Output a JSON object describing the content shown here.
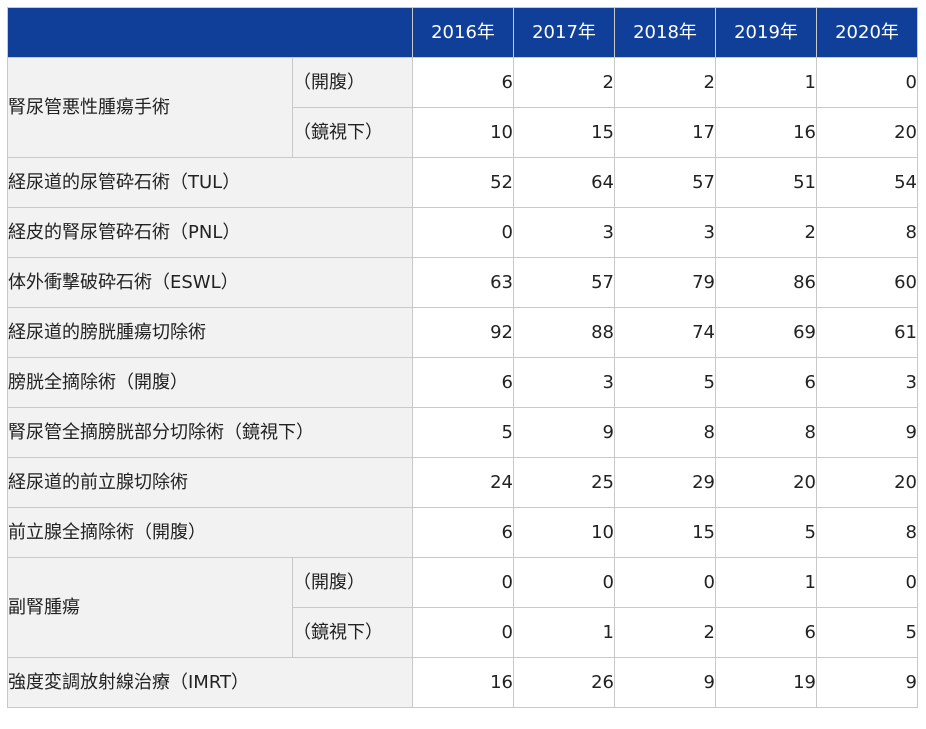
{
  "header": {
    "corner": "",
    "years": [
      "2016年",
      "2017年",
      "2018年",
      "2019年",
      "2020年"
    ]
  },
  "rows": [
    {
      "name": "腎尿管悪性腫瘍手術",
      "sub": "（開腹）",
      "values": [
        "6",
        "2",
        "2",
        "1",
        "0"
      ]
    },
    {
      "name": "",
      "sub": "（鏡視下）",
      "values": [
        "10",
        "15",
        "17",
        "16",
        "20"
      ]
    },
    {
      "name": "経尿道的尿管砕石術（TUL）",
      "values": [
        "52",
        "64",
        "57",
        "51",
        "54"
      ]
    },
    {
      "name": "経皮的腎尿管砕石術（PNL）",
      "values": [
        "0",
        "3",
        "3",
        "2",
        "8"
      ]
    },
    {
      "name": "体外衝撃破砕石術（ESWL）",
      "values": [
        "63",
        "57",
        "79",
        "86",
        "60"
      ]
    },
    {
      "name": "経尿道的膀胱腫瘍切除術",
      "values": [
        "92",
        "88",
        "74",
        "69",
        "61"
      ]
    },
    {
      "name": "膀胱全摘除術（開腹）",
      "values": [
        "6",
        "3",
        "5",
        "6",
        "3"
      ]
    },
    {
      "name": "腎尿管全摘膀胱部分切除術（鏡視下）",
      "values": [
        "5",
        "9",
        "8",
        "8",
        "9"
      ]
    },
    {
      "name": "経尿道的前立腺切除術",
      "values": [
        "24",
        "25",
        "29",
        "20",
        "20"
      ]
    },
    {
      "name": "前立腺全摘除術（開腹）",
      "values": [
        "6",
        "10",
        "15",
        "5",
        "8"
      ]
    },
    {
      "name": "副腎腫瘍",
      "sub": "（開腹）",
      "values": [
        "0",
        "0",
        "0",
        "1",
        "0"
      ]
    },
    {
      "name": "",
      "sub": "（鏡視下）",
      "values": [
        "0",
        "1",
        "2",
        "6",
        "5"
      ]
    },
    {
      "name": "強度変調放射線治療（IMRT）",
      "values": [
        "16",
        "26",
        "9",
        "19",
        "9"
      ]
    }
  ],
  "colors": {
    "header_bg": "#0f3f99",
    "header_text": "#ffffff",
    "label_bg": "#f2f2f2",
    "border": "#c9c9c9"
  }
}
